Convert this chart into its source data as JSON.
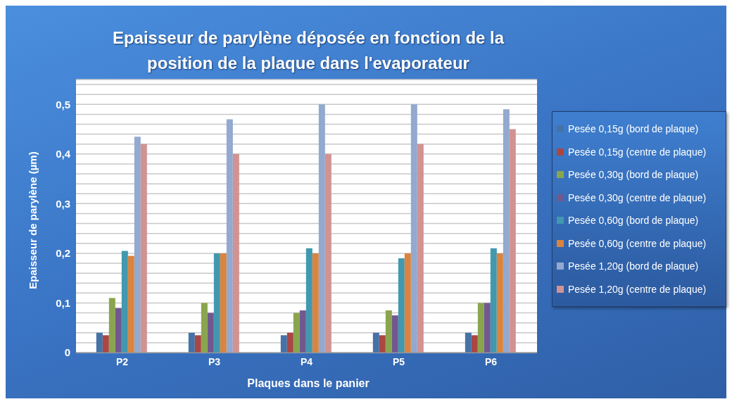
{
  "chart_data": {
    "type": "bar",
    "title": "Epaisseur de parylène déposée en fonction de la position de la plaque dans l'evaporateur",
    "xlabel": "Plaques dans le panier",
    "ylabel": "Epaisseur de parylène (µm)",
    "categories": [
      "P2",
      "P3",
      "P4",
      "P5",
      "P6"
    ],
    "series": [
      {
        "name": "Pesée 0,15g (bord de plaque)",
        "color": "#4572a7",
        "values": [
          0.04,
          0.04,
          0.035,
          0.04,
          0.04
        ]
      },
      {
        "name": "Pesée 0,15g (centre de plaque)",
        "color": "#aa4643",
        "values": [
          0.035,
          0.035,
          0.04,
          0.035,
          0.035
        ]
      },
      {
        "name": "Pesée 0,30g (bord de plaque)",
        "color": "#89a54e",
        "values": [
          0.11,
          0.1,
          0.08,
          0.085,
          0.1
        ]
      },
      {
        "name": "Pesée 0,30g (centre de plaque)",
        "color": "#71588f",
        "values": [
          0.09,
          0.08,
          0.085,
          0.075,
          0.1
        ]
      },
      {
        "name": "Pesée 0,60g (bord de plaque)",
        "color": "#4198af",
        "values": [
          0.205,
          0.2,
          0.21,
          0.19,
          0.21
        ]
      },
      {
        "name": "Pesée 0,60g (centre de plaque)",
        "color": "#db843d",
        "values": [
          0.195,
          0.2,
          0.2,
          0.2,
          0.2
        ]
      },
      {
        "name": "Pesée 1,20g (bord de plaque)",
        "color": "#93a9cf",
        "values": [
          0.435,
          0.47,
          0.5,
          0.5,
          0.49
        ]
      },
      {
        "name": "Pesée 1,20g (centre de plaque)",
        "color": "#d19392",
        "values": [
          0.42,
          0.4,
          0.4,
          0.42,
          0.45
        ]
      }
    ],
    "ylim": [
      0,
      0.55
    ],
    "yticks": [
      0,
      {
        "value": 0.02,
        "label": null
      },
      {
        "value": 0.04,
        "label": null
      },
      {
        "value": 0.06,
        "label": null
      },
      {
        "value": 0.08,
        "label": null
      },
      {
        "value": 0.1,
        "label": "0,1"
      },
      {
        "value": 0.12,
        "label": null
      },
      {
        "value": 0.14,
        "label": null
      },
      {
        "value": 0.16,
        "label": null
      },
      {
        "value": 0.18,
        "label": null
      },
      {
        "value": 0.2,
        "label": "0,2"
      },
      {
        "value": 0.22,
        "label": null
      },
      {
        "value": 0.24,
        "label": null
      },
      {
        "value": 0.26,
        "label": null
      },
      {
        "value": 0.28,
        "label": null
      },
      {
        "value": 0.3,
        "label": "0,3"
      },
      {
        "value": 0.32,
        "label": null
      },
      {
        "value": 0.34,
        "label": null
      },
      {
        "value": 0.36,
        "label": null
      },
      {
        "value": 0.38,
        "label": null
      },
      {
        "value": 0.4,
        "label": "0,4"
      },
      {
        "value": 0.42,
        "label": null
      },
      {
        "value": 0.44,
        "label": null
      },
      {
        "value": 0.46,
        "label": null
      },
      {
        "value": 0.48,
        "label": null
      },
      {
        "value": 0.5,
        "label": "0,5"
      },
      {
        "value": 0.52,
        "label": null
      },
      {
        "value": 0.54,
        "label": null
      }
    ],
    "grid": "y",
    "legend": "right"
  }
}
